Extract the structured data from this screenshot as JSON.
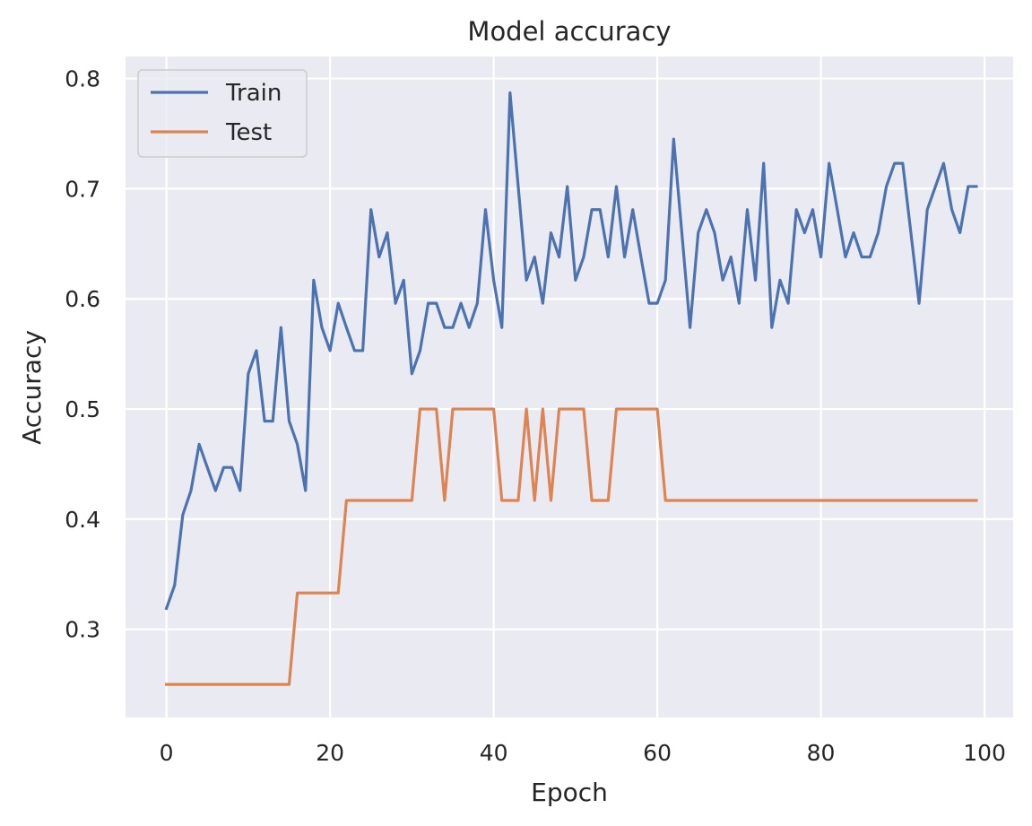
{
  "chart_data": {
    "type": "line",
    "title": "Model accuracy",
    "xlabel": "Epoch",
    "ylabel": "Accuracy",
    "xlim": [
      -5,
      103.5
    ],
    "ylim": [
      0.22,
      0.82
    ],
    "xticks": [
      0,
      20,
      40,
      60,
      80,
      100
    ],
    "yticks": [
      0.3,
      0.4,
      0.5,
      0.6,
      0.7,
      0.8
    ],
    "xtick_labels": [
      "0",
      "20",
      "40",
      "60",
      "80",
      "100"
    ],
    "ytick_labels": [
      "0.3",
      "0.4",
      "0.5",
      "0.6",
      "0.7",
      "0.8"
    ],
    "grid": true,
    "legend_position": "top-left",
    "background": "#eaeaf2",
    "series": [
      {
        "name": "Train",
        "color": "#4c72b0",
        "values": [
          0.319,
          0.34,
          0.404,
          0.426,
          0.468,
          0.447,
          0.426,
          0.447,
          0.447,
          0.426,
          0.532,
          0.553,
          0.489,
          0.489,
          0.574,
          0.489,
          0.468,
          0.426,
          0.617,
          0.574,
          0.553,
          0.596,
          0.574,
          0.553,
          0.553,
          0.681,
          0.638,
          0.66,
          0.596,
          0.617,
          0.532,
          0.553,
          0.596,
          0.596,
          0.574,
          0.574,
          0.596,
          0.574,
          0.596,
          0.681,
          0.617,
          0.574,
          0.787,
          0.702,
          0.617,
          0.638,
          0.596,
          0.66,
          0.638,
          0.702,
          0.617,
          0.638,
          0.681,
          0.681,
          0.638,
          0.702,
          0.638,
          0.681,
          0.638,
          0.596,
          0.596,
          0.617,
          0.745,
          0.66,
          0.574,
          0.66,
          0.681,
          0.66,
          0.617,
          0.638,
          0.596,
          0.681,
          0.617,
          0.723,
          0.574,
          0.617,
          0.596,
          0.681,
          0.66,
          0.681,
          0.638,
          0.723,
          0.681,
          0.638,
          0.66,
          0.638,
          0.638,
          0.66,
          0.702,
          0.723,
          0.723,
          0.66,
          0.596,
          0.681,
          0.702,
          0.723,
          0.681,
          0.66,
          0.702,
          0.702
        ]
      },
      {
        "name": "Test",
        "color": "#dd8452",
        "values": [
          0.25,
          0.25,
          0.25,
          0.25,
          0.25,
          0.25,
          0.25,
          0.25,
          0.25,
          0.25,
          0.25,
          0.25,
          0.25,
          0.25,
          0.25,
          0.25,
          0.333,
          0.333,
          0.333,
          0.333,
          0.333,
          0.333,
          0.417,
          0.417,
          0.417,
          0.417,
          0.417,
          0.417,
          0.417,
          0.417,
          0.417,
          0.5,
          0.5,
          0.5,
          0.417,
          0.5,
          0.5,
          0.5,
          0.5,
          0.5,
          0.5,
          0.417,
          0.417,
          0.417,
          0.5,
          0.417,
          0.5,
          0.417,
          0.5,
          0.5,
          0.5,
          0.5,
          0.417,
          0.417,
          0.417,
          0.5,
          0.5,
          0.5,
          0.5,
          0.5,
          0.5,
          0.417,
          0.417,
          0.417,
          0.417,
          0.417,
          0.417,
          0.417,
          0.417,
          0.417,
          0.417,
          0.417,
          0.417,
          0.417,
          0.417,
          0.417,
          0.417,
          0.417,
          0.417,
          0.417,
          0.417,
          0.417,
          0.417,
          0.417,
          0.417,
          0.417,
          0.417,
          0.417,
          0.417,
          0.417,
          0.417,
          0.417,
          0.417,
          0.417,
          0.417,
          0.417,
          0.417,
          0.417,
          0.417,
          0.417
        ]
      }
    ]
  }
}
